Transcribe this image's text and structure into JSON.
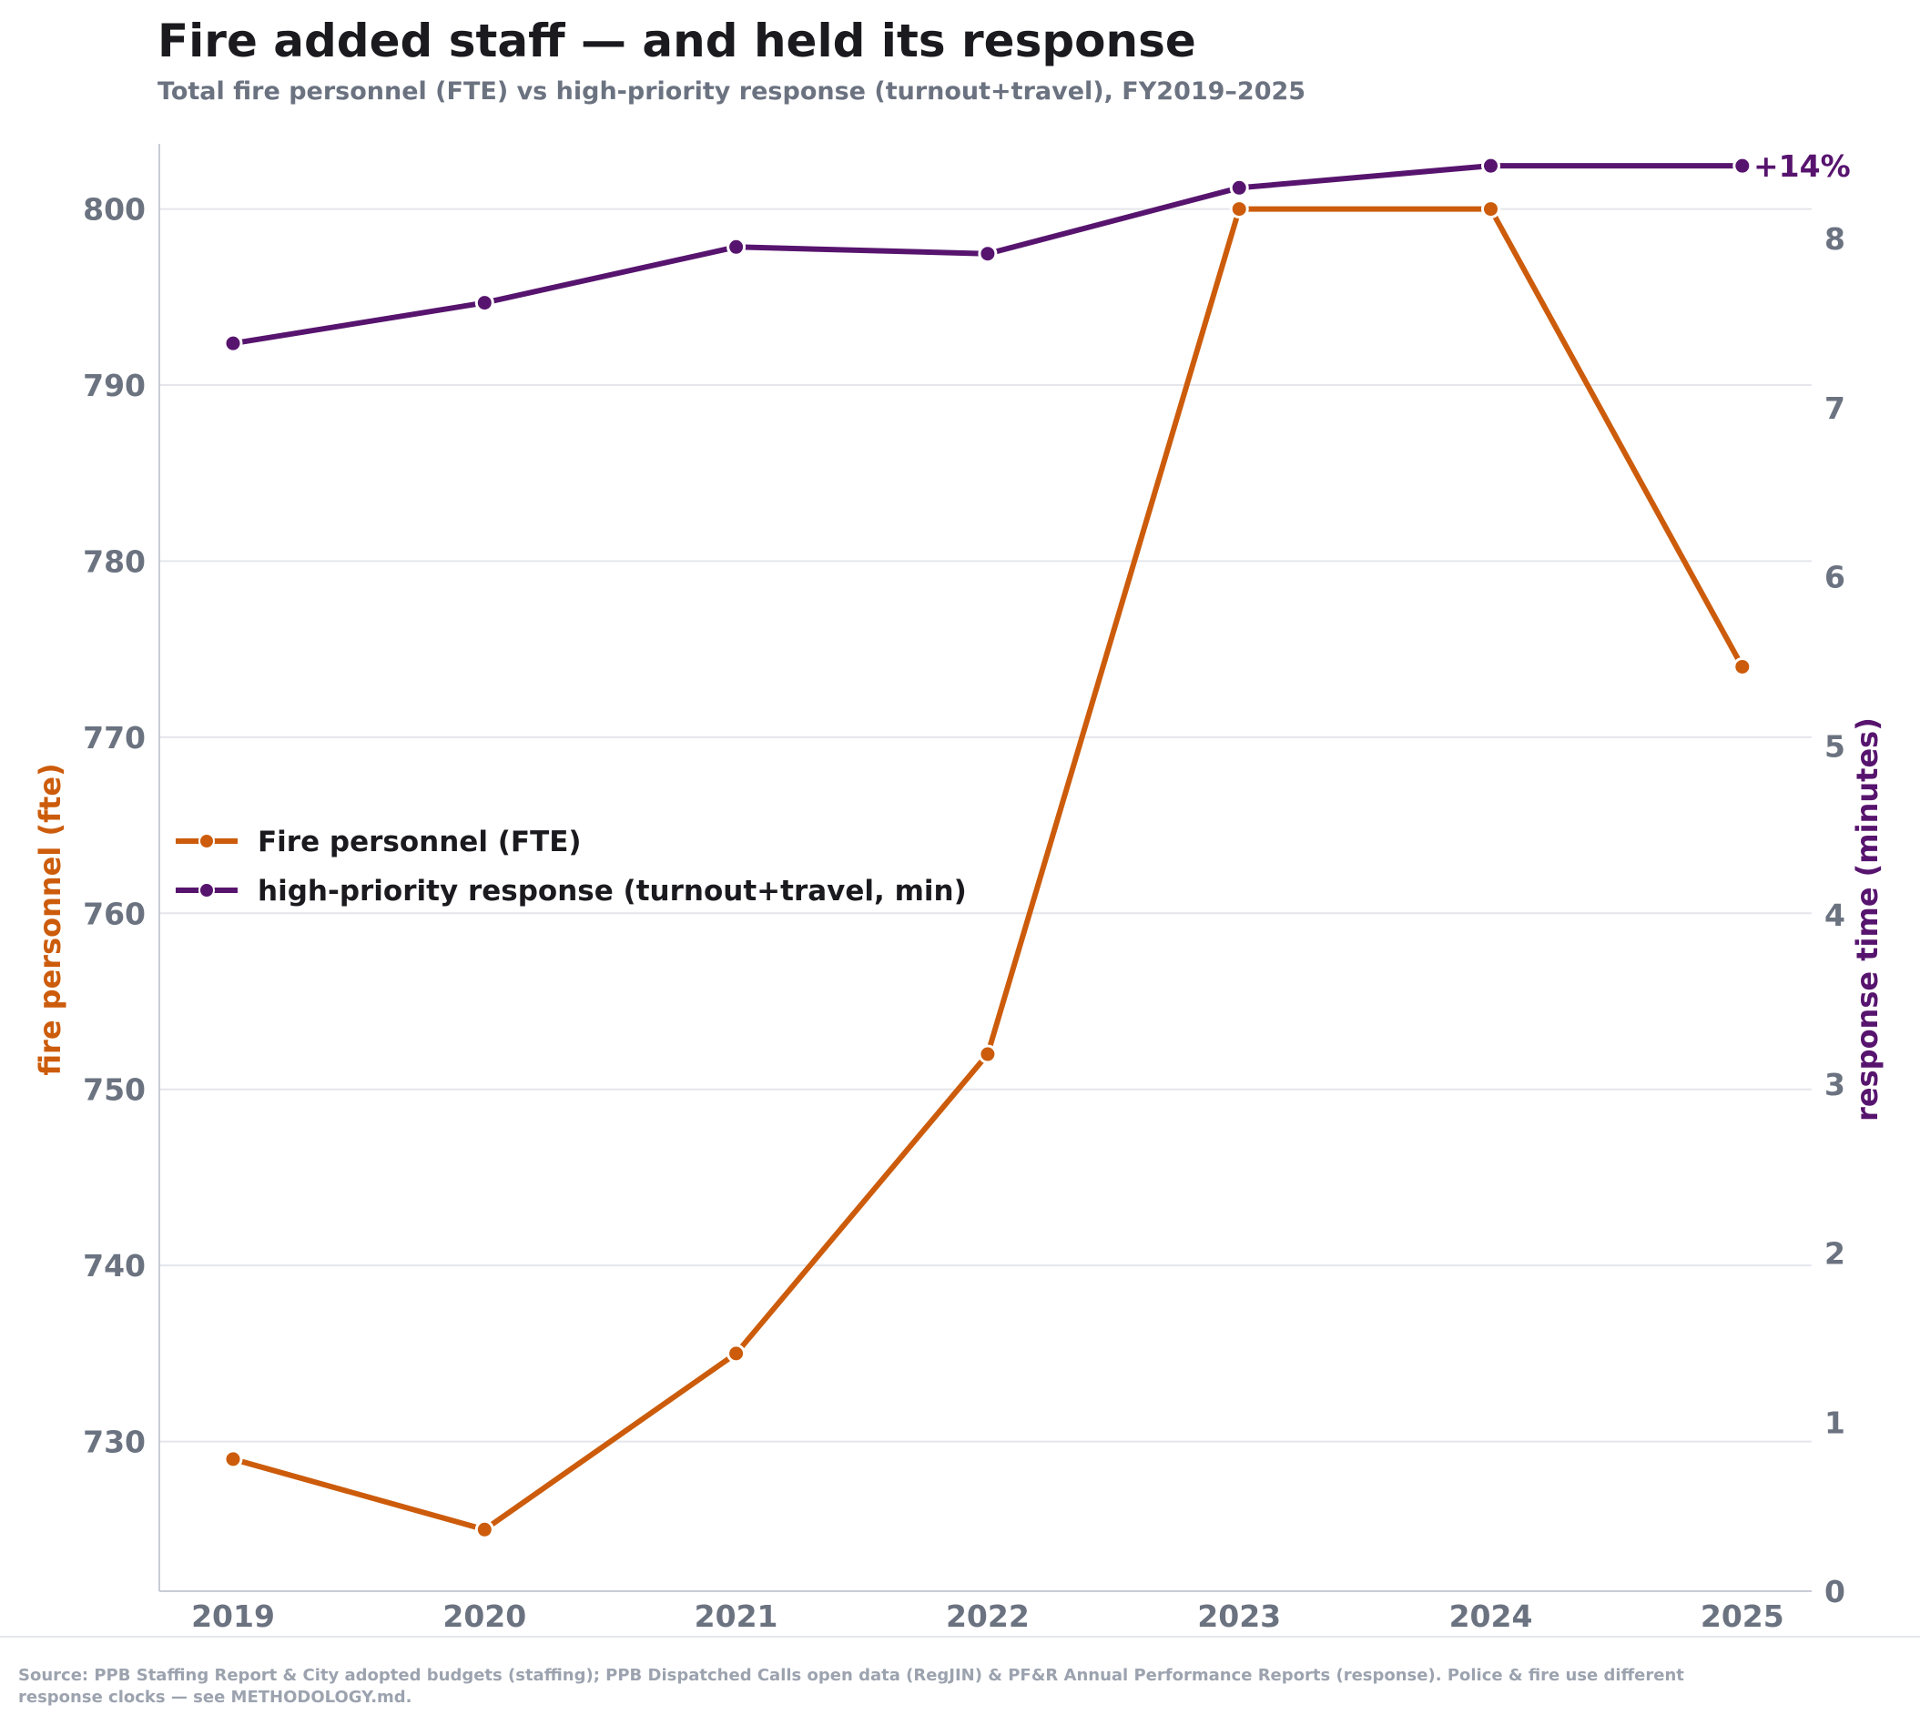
{
  "chart_data": {
    "type": "line",
    "title": "Fire added staff — and held its response",
    "subtitle": "Total fire personnel (FTE) vs high-priority response (turnout+travel), FY2019–2025",
    "categories": [
      "2019",
      "2020",
      "2021",
      "2022",
      "2023",
      "2024",
      "2025"
    ],
    "series": [
      {
        "name": "Fire personnel (FTE)",
        "axis": "left",
        "color": "#cc5c0b",
        "values": [
          729,
          725,
          735,
          752,
          800,
          800,
          774
        ]
      },
      {
        "name": "high-priority response (turnout+travel, min)",
        "axis": "right",
        "color": "#57146e",
        "values": [
          7.38,
          7.62,
          7.95,
          7.91,
          8.3,
          8.43,
          8.43
        ]
      }
    ],
    "y_left": {
      "label": "fire personnel (fte)",
      "ticks": [
        "730",
        "740",
        "750",
        "760",
        "770",
        "780",
        "790",
        "800"
      ],
      "range": [
        721.5,
        803.7
      ]
    },
    "y_right": {
      "label": "response time (minutes)",
      "ticks": [
        "0",
        "1",
        "2",
        "3",
        "4",
        "5",
        "6",
        "7",
        "8"
      ],
      "range": [
        0,
        8.56
      ]
    },
    "end_annotation": "+14%",
    "grid": true,
    "legend_position": "middle-left"
  },
  "footer": {
    "source_line1": "Source: PPB Staffing Report & City adopted budgets (staffing); PPB Dispatched Calls open data (RegJIN) & PF&R Annual Performance Reports (response). Police & fire use different",
    "source_line2": "response clocks — see METHODOLOGY.md."
  }
}
